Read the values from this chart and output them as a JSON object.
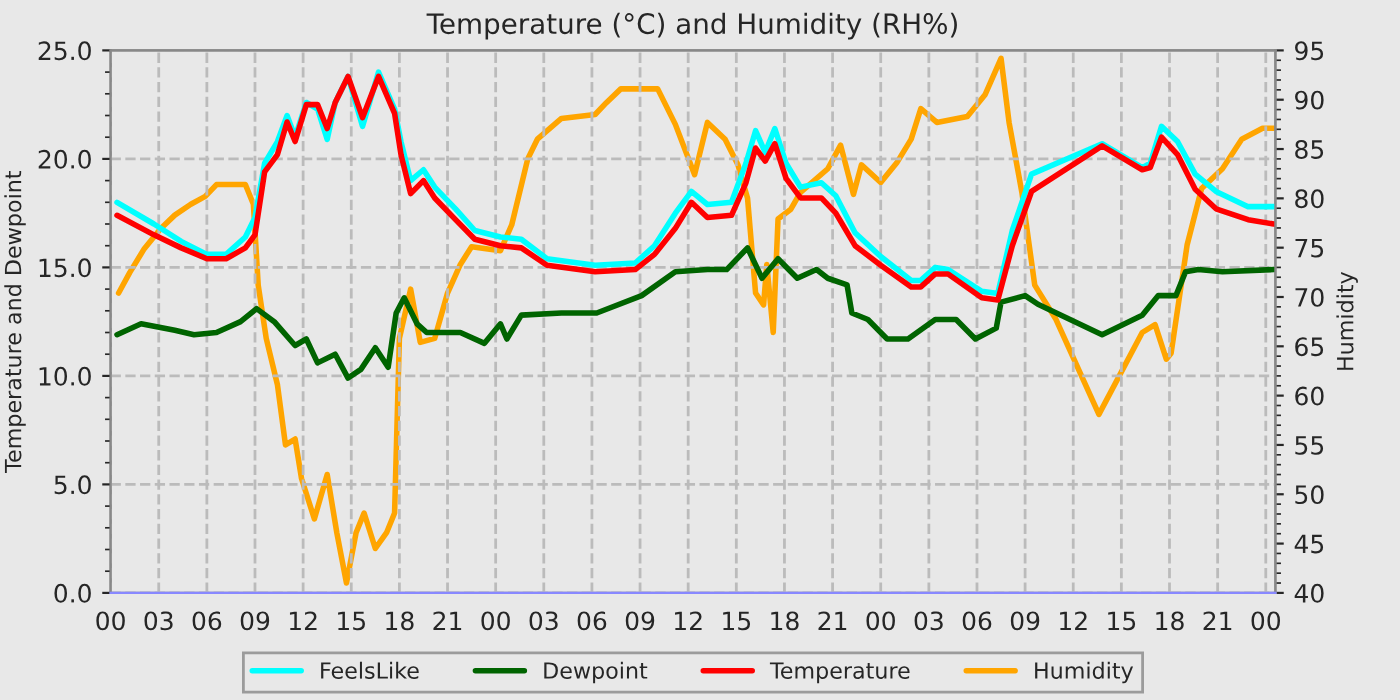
{
  "chart_data": {
    "type": "line",
    "title": "Temperature (°C) and Humidity (RH%)",
    "ylabel": "Temperature and Dewpoint",
    "y2label": "Humidity",
    "xlim": [
      0,
      72.6
    ],
    "xticks": [
      {
        "value": 0,
        "label": "00"
      },
      {
        "value": 3,
        "label": "03"
      },
      {
        "value": 6,
        "label": "06"
      },
      {
        "value": 9,
        "label": "09"
      },
      {
        "value": 12,
        "label": "12"
      },
      {
        "value": 15,
        "label": "15"
      },
      {
        "value": 18,
        "label": "18"
      },
      {
        "value": 21,
        "label": "21"
      },
      {
        "value": 24,
        "label": "00"
      },
      {
        "value": 27,
        "label": "03"
      },
      {
        "value": 30,
        "label": "06"
      },
      {
        "value": 33,
        "label": "09"
      },
      {
        "value": 36,
        "label": "12"
      },
      {
        "value": 39,
        "label": "15"
      },
      {
        "value": 42,
        "label": "18"
      },
      {
        "value": 45,
        "label": "21"
      },
      {
        "value": 48,
        "label": "00"
      },
      {
        "value": 51,
        "label": "03"
      },
      {
        "value": 54,
        "label": "06"
      },
      {
        "value": 57,
        "label": "09"
      },
      {
        "value": 60,
        "label": "12"
      },
      {
        "value": 63,
        "label": "15"
      },
      {
        "value": 66,
        "label": "18"
      },
      {
        "value": 69,
        "label": "21"
      },
      {
        "value": 72,
        "label": "00"
      }
    ],
    "ylim": [
      0,
      25
    ],
    "yticks": [
      {
        "value": 0,
        "label": "0.0"
      },
      {
        "value": 5,
        "label": "5.0"
      },
      {
        "value": 10,
        "label": "10.0"
      },
      {
        "value": 15,
        "label": "15.0"
      },
      {
        "value": 20,
        "label": "20.0"
      },
      {
        "value": 25,
        "label": "25.0"
      }
    ],
    "y2lim": [
      40,
      95
    ],
    "y2ticks": [
      40,
      45,
      50,
      55,
      60,
      65,
      70,
      75,
      80,
      85,
      90,
      95
    ],
    "grid": true,
    "legend": "bottom",
    "line_style": "solid",
    "marker": "none",
    "series": [
      {
        "name": "FeelsLike",
        "color": "#00ffff",
        "x": [
          0.4,
          2.7,
          4.4,
          6.0,
          7.2,
          8.4,
          9.0,
          9.6,
          10.4,
          11.0,
          11.5,
          12.2,
          12.9,
          13.5,
          14.0,
          14.8,
          15.7,
          16.7,
          17.7,
          18.1,
          18.7,
          19.5,
          20.2,
          21.5,
          22.7,
          24.3,
          25.6,
          27.2,
          30.2,
          32.7,
          33.9,
          35.2,
          36.2,
          37.2,
          38.7,
          39.6,
          40.2,
          40.8,
          41.4,
          42.1,
          43.0,
          44.3,
          45.2,
          46.4,
          48.0,
          49.9,
          50.5,
          51.4,
          52.2,
          54.3,
          55.3,
          56.2,
          57.4,
          61.8,
          64.3,
          64.8,
          65.5,
          66.5,
          67.6,
          68.9,
          70.9,
          72.5
        ],
        "values": [
          18.0,
          17.0,
          16.2,
          15.6,
          15.6,
          16.4,
          17.3,
          19.8,
          20.8,
          22.0,
          21.0,
          22.6,
          22.3,
          20.9,
          22.6,
          23.8,
          21.5,
          24.0,
          22.3,
          20.8,
          19.0,
          19.5,
          18.7,
          17.7,
          16.7,
          16.4,
          16.3,
          15.4,
          15.1,
          15.2,
          16.0,
          17.5,
          18.5,
          17.9,
          18.0,
          19.8,
          21.3,
          20.3,
          21.4,
          19.8,
          18.7,
          18.9,
          18.3,
          16.6,
          15.5,
          14.4,
          14.4,
          15.0,
          14.9,
          13.9,
          13.8,
          16.7,
          19.3,
          20.7,
          19.6,
          19.8,
          21.5,
          20.8,
          19.3,
          18.5,
          17.8,
          17.8
        ]
      },
      {
        "name": "Dewpoint",
        "color": "#006400",
        "x": [
          0.4,
          1.9,
          4.0,
          5.2,
          6.6,
          8.1,
          9.1,
          10.2,
          11.5,
          12.2,
          12.9,
          14.0,
          14.8,
          15.6,
          16.5,
          17.3,
          17.8,
          18.3,
          19.1,
          19.7,
          21.8,
          23.3,
          24.3,
          24.7,
          25.6,
          28.1,
          30.3,
          33.1,
          35.2,
          37.2,
          38.4,
          39.7,
          40.6,
          41.6,
          42.8,
          44.0,
          44.7,
          45.9,
          46.2,
          47.2,
          48.4,
          49.7,
          51.4,
          52.7,
          53.9,
          55.2,
          55.5,
          57.0,
          57.8,
          61.8,
          64.3,
          65.3,
          66.4,
          67.0,
          67.8,
          69.3,
          72.5
        ],
        "values": [
          11.9,
          12.4,
          12.1,
          11.9,
          12.0,
          12.5,
          13.1,
          12.5,
          11.4,
          11.7,
          10.6,
          11.0,
          9.9,
          10.3,
          11.3,
          10.4,
          12.9,
          13.6,
          12.4,
          12.0,
          12.0,
          11.5,
          12.4,
          11.7,
          12.8,
          12.9,
          12.9,
          13.7,
          14.8,
          14.9,
          14.9,
          15.9,
          14.5,
          15.4,
          14.5,
          14.9,
          14.5,
          14.2,
          12.9,
          12.6,
          11.7,
          11.7,
          12.6,
          12.6,
          11.7,
          12.2,
          13.4,
          13.7,
          13.3,
          11.9,
          12.8,
          13.7,
          13.7,
          14.8,
          14.9,
          14.8,
          14.9
        ]
      },
      {
        "name": "Temperature",
        "color": "#ff0000",
        "x": [
          0.4,
          2.7,
          4.4,
          6.0,
          7.2,
          8.4,
          9.0,
          9.6,
          10.4,
          11.0,
          11.5,
          12.2,
          12.9,
          13.5,
          14.0,
          14.8,
          15.7,
          16.7,
          17.7,
          18.1,
          18.7,
          19.5,
          20.2,
          21.5,
          22.7,
          24.3,
          25.6,
          27.2,
          30.2,
          32.7,
          33.9,
          35.2,
          36.2,
          37.2,
          38.7,
          39.6,
          40.2,
          40.8,
          41.4,
          42.1,
          43.0,
          44.3,
          45.2,
          46.4,
          48.0,
          49.9,
          50.5,
          51.4,
          52.2,
          54.3,
          55.3,
          56.2,
          57.4,
          61.8,
          64.3,
          64.8,
          65.5,
          66.5,
          67.6,
          68.9,
          70.9,
          72.5
        ],
        "values": [
          17.4,
          16.5,
          15.9,
          15.4,
          15.4,
          15.9,
          16.5,
          19.4,
          20.2,
          21.7,
          20.8,
          22.5,
          22.5,
          21.4,
          22.6,
          23.8,
          21.9,
          23.8,
          22.1,
          20.2,
          18.4,
          19.0,
          18.2,
          17.2,
          16.3,
          16.0,
          15.9,
          15.1,
          14.8,
          14.9,
          15.6,
          16.8,
          18.0,
          17.3,
          17.4,
          18.9,
          20.5,
          19.9,
          20.7,
          19.1,
          18.2,
          18.2,
          17.5,
          16.0,
          15.1,
          14.1,
          14.1,
          14.7,
          14.7,
          13.6,
          13.5,
          16.0,
          18.5,
          20.6,
          19.5,
          19.6,
          21.0,
          20.2,
          18.6,
          17.7,
          17.2,
          17.0
        ]
      },
      {
        "name": "Humidity",
        "color": "#ffa500",
        "axis": "y2",
        "x": [
          0.5,
          1.2,
          2.1,
          3.1,
          4.0,
          5.0,
          5.9,
          6.6,
          8.4,
          8.9,
          9.2,
          9.7,
          10.4,
          10.9,
          11.5,
          11.9,
          12.7,
          13.5,
          14.1,
          14.7,
          15.3,
          15.8,
          16.5,
          17.2,
          17.7,
          18.0,
          18.7,
          19.3,
          20.2,
          21.0,
          21.8,
          22.5,
          24.3,
          25.0,
          26.0,
          26.6,
          28.1,
          30.2,
          30.9,
          31.8,
          34.1,
          35.2,
          36.4,
          37.2,
          38.3,
          39.1,
          39.7,
          40.2,
          40.7,
          40.9,
          41.3,
          41.6,
          42.4,
          43.0,
          44.7,
          45.5,
          46.3,
          46.8,
          48.0,
          49.0,
          49.9,
          50.5,
          51.5,
          53.4,
          54.5,
          55.5,
          56.0,
          56.8,
          57.6,
          58.9,
          61.6,
          64.3,
          65.1,
          65.8,
          66.1,
          67.1,
          68.0,
          69.3,
          70.5,
          71.8,
          72.5
        ],
        "values": [
          70.4,
          72.5,
          74.9,
          76.9,
          78.3,
          79.4,
          80.2,
          81.4,
          81.4,
          79.4,
          71.2,
          65.8,
          61.1,
          55.0,
          55.6,
          51.6,
          47.5,
          52.0,
          46.1,
          41.0,
          46.1,
          48.1,
          44.5,
          46.1,
          48.1,
          65.8,
          70.8,
          65.4,
          65.8,
          70.4,
          73.3,
          75.1,
          74.7,
          77.3,
          84.0,
          86.0,
          88.1,
          88.5,
          89.7,
          91.1,
          91.1,
          87.5,
          82.4,
          87.7,
          86.0,
          83.4,
          80.0,
          70.4,
          69.2,
          73.3,
          66.4,
          77.9,
          78.9,
          80.6,
          83.0,
          85.4,
          80.4,
          83.4,
          81.6,
          83.6,
          86.0,
          89.1,
          87.7,
          88.3,
          90.5,
          94.2,
          87.7,
          80.6,
          71.2,
          67.8,
          58.1,
          66.4,
          67.2,
          63.7,
          64.3,
          75.3,
          81.0,
          83.0,
          86.0,
          87.1,
          87.1
        ]
      }
    ]
  }
}
